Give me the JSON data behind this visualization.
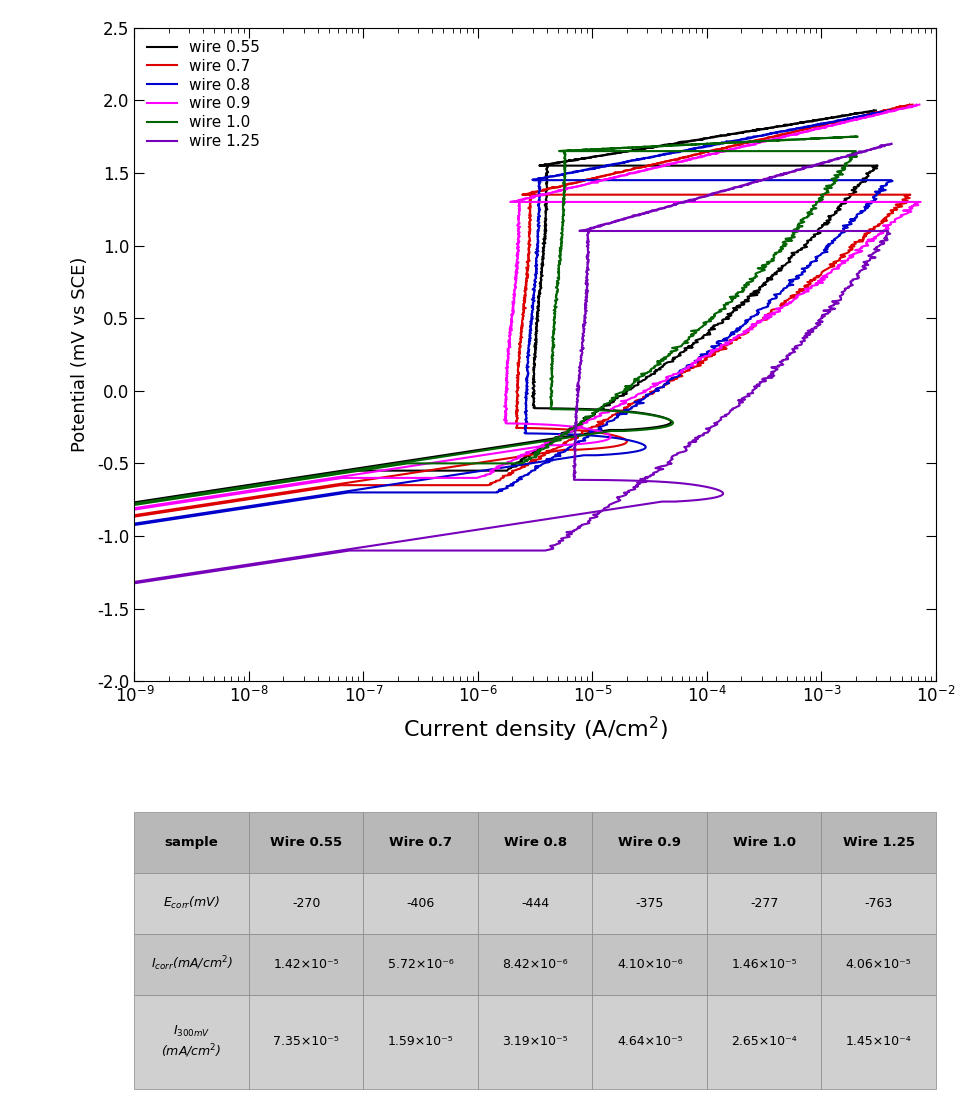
{
  "xlabel": "Current density (A/cm$^2$)",
  "ylabel": "Potential (mV vs SCE)",
  "xlim": [
    1e-09,
    0.01
  ],
  "ylim": [
    -2.0,
    2.5
  ],
  "yticks": [
    -2.0,
    -1.5,
    -1.0,
    -0.5,
    0.0,
    0.5,
    1.0,
    1.5,
    2.0,
    2.5
  ],
  "series": [
    {
      "label": "wire 0.55",
      "color": "#000000",
      "Ecorr": -0.27,
      "icorr": 1.42e-05,
      "ipass": 3.5e-06,
      "Epit": 1.55,
      "ipit": 0.003,
      "Emax": 1.93,
      "Eprot": -0.55,
      "scan_low": -1.07
    },
    {
      "label": "wire 0.7",
      "color": "#dd0000",
      "Ecorr": -0.406,
      "icorr": 5.72e-06,
      "ipass": 2.5e-06,
      "Epit": 1.35,
      "ipit": 0.006,
      "Emax": 1.97,
      "Eprot": -0.65,
      "scan_low": -1.2
    },
    {
      "label": "wire 0.8",
      "color": "#0000cc",
      "Ecorr": -0.444,
      "icorr": 8.42e-06,
      "ipass": 3e-06,
      "Epit": 1.45,
      "ipit": 0.004,
      "Emax": 1.93,
      "Eprot": -0.7,
      "scan_low": -1.25
    },
    {
      "label": "wire 0.9",
      "color": "#ff00ff",
      "Ecorr": -0.375,
      "icorr": 4.1e-06,
      "ipass": 2e-06,
      "Epit": 1.3,
      "ipit": 0.007,
      "Emax": 1.97,
      "Eprot": -0.6,
      "scan_low": -1.15
    },
    {
      "label": "wire 1.0",
      "color": "#006400",
      "Ecorr": -0.277,
      "icorr": 1.46e-05,
      "ipass": 5e-06,
      "Epit": 1.65,
      "ipit": 0.002,
      "Emax": 1.75,
      "Eprot": -0.5,
      "scan_low": -1.05
    },
    {
      "label": "wire 1.25",
      "color": "#7700bb",
      "Ecorr": -0.763,
      "icorr": 4.06e-05,
      "ipass": 8e-06,
      "Epit": 1.1,
      "ipit": 0.004,
      "Emax": 1.7,
      "Eprot": -1.1,
      "scan_low": -1.55
    }
  ],
  "table_col_labels": [
    "sample",
    "Wire 0.55",
    "Wire 0.7",
    "Wire 0.8",
    "Wire 0.9",
    "Wire 1.0",
    "Wire 1.25"
  ],
  "table_rows": [
    {
      "label": "$E_{corr}$(mV)",
      "values": [
        "-270",
        "-406",
        "-444",
        "-375",
        "-277",
        "-763"
      ]
    },
    {
      "label": "$I_{corr}$(mA/cm$^2$)",
      "values": [
        "1.42×10⁻⁵",
        "5.72×10⁻⁶",
        "8.42×10⁻⁶",
        "4.10×10⁻⁶",
        "1.46×10⁻⁵",
        "4.06×10⁻⁵"
      ]
    },
    {
      "label": "$I_{300mV}$\n(mA/cm$^2$)",
      "values": [
        "7.35×10⁻⁵",
        "1.59×10⁻⁵",
        "3.19×10⁻⁵",
        "4.64×10⁻⁵",
        "2.65×10⁻⁴",
        "1.45×10⁻⁴"
      ]
    }
  ],
  "header_color": "#b8b8b8",
  "row_color1": "#d0d0d0",
  "row_color2": "#c4c4c4"
}
